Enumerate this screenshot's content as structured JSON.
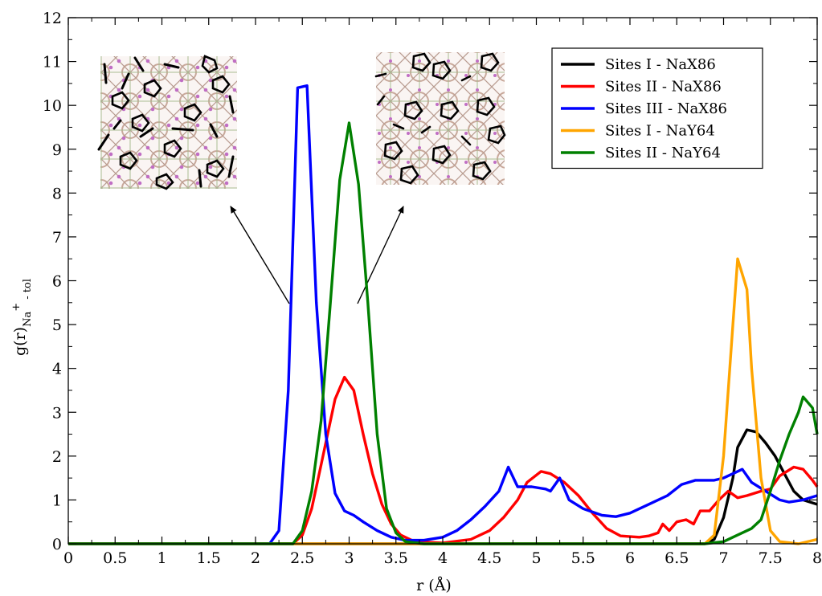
{
  "chart_data": {
    "type": "line",
    "title": "",
    "xlabel": "r (Å)",
    "ylabel": "g(r)",
    "ylabel_sub": "Na",
    "ylabel_sup": "+",
    "ylabel_sub2": " - tol",
    "xlim": [
      0,
      8
    ],
    "ylim": [
      0,
      12
    ],
    "xticks": [
      "0",
      "0.5",
      "1",
      "1.5",
      "2",
      "2.5",
      "3",
      "3.5",
      "4",
      "4.5",
      "5",
      "5.5",
      "6",
      "6.5",
      "7",
      "7.5",
      "8"
    ],
    "yticks": [
      "0",
      "1",
      "2",
      "3",
      "4",
      "5",
      "6",
      "7",
      "8",
      "9",
      "10",
      "11",
      "12"
    ],
    "grid": false,
    "legend_position": "top-right",
    "series": [
      {
        "name": "Sites I - NaX86",
        "color": "#000000",
        "points": [
          [
            0,
            0
          ],
          [
            6.8,
            0
          ],
          [
            6.9,
            0.1
          ],
          [
            7.0,
            0.6
          ],
          [
            7.1,
            1.5
          ],
          [
            7.15,
            2.2
          ],
          [
            7.25,
            2.6
          ],
          [
            7.35,
            2.55
          ],
          [
            7.45,
            2.3
          ],
          [
            7.55,
            2.0
          ],
          [
            7.65,
            1.6
          ],
          [
            7.75,
            1.2
          ],
          [
            7.85,
            1.0
          ],
          [
            8.0,
            0.9
          ]
        ]
      },
      {
        "name": "Sites II - NaX86",
        "color": "#ff0000",
        "points": [
          [
            0,
            0
          ],
          [
            2.4,
            0
          ],
          [
            2.5,
            0.2
          ],
          [
            2.6,
            0.8
          ],
          [
            2.7,
            1.8
          ],
          [
            2.8,
            2.8
          ],
          [
            2.85,
            3.3
          ],
          [
            2.95,
            3.8
          ],
          [
            3.05,
            3.5
          ],
          [
            3.15,
            2.5
          ],
          [
            3.25,
            1.6
          ],
          [
            3.35,
            0.9
          ],
          [
            3.45,
            0.45
          ],
          [
            3.55,
            0.2
          ],
          [
            3.7,
            0.05
          ],
          [
            4.0,
            0.02
          ],
          [
            4.3,
            0.1
          ],
          [
            4.5,
            0.3
          ],
          [
            4.65,
            0.6
          ],
          [
            4.8,
            1.0
          ],
          [
            4.9,
            1.4
          ],
          [
            5.05,
            1.65
          ],
          [
            5.15,
            1.6
          ],
          [
            5.3,
            1.4
          ],
          [
            5.45,
            1.1
          ],
          [
            5.6,
            0.7
          ],
          [
            5.75,
            0.35
          ],
          [
            5.9,
            0.18
          ],
          [
            6.1,
            0.15
          ],
          [
            6.2,
            0.18
          ],
          [
            6.3,
            0.25
          ],
          [
            6.35,
            0.45
          ],
          [
            6.42,
            0.3
          ],
          [
            6.5,
            0.5
          ],
          [
            6.6,
            0.55
          ],
          [
            6.68,
            0.45
          ],
          [
            6.75,
            0.75
          ],
          [
            6.85,
            0.75
          ],
          [
            6.95,
            1.0
          ],
          [
            7.05,
            1.2
          ],
          [
            7.15,
            1.05
          ],
          [
            7.25,
            1.1
          ],
          [
            7.4,
            1.2
          ],
          [
            7.5,
            1.25
          ],
          [
            7.6,
            1.55
          ],
          [
            7.75,
            1.75
          ],
          [
            7.85,
            1.7
          ],
          [
            7.95,
            1.45
          ],
          [
            8.0,
            1.3
          ]
        ]
      },
      {
        "name": "Sites III - NaX86",
        "color": "#0000ff",
        "points": [
          [
            0,
            0
          ],
          [
            2.15,
            0
          ],
          [
            2.25,
            0.3
          ],
          [
            2.35,
            3.5
          ],
          [
            2.45,
            10.4
          ],
          [
            2.55,
            10.45
          ],
          [
            2.65,
            5.5
          ],
          [
            2.75,
            2.5
          ],
          [
            2.85,
            1.15
          ],
          [
            2.95,
            0.75
          ],
          [
            3.05,
            0.65
          ],
          [
            3.15,
            0.5
          ],
          [
            3.3,
            0.3
          ],
          [
            3.45,
            0.15
          ],
          [
            3.6,
            0.08
          ],
          [
            3.8,
            0.08
          ],
          [
            4.0,
            0.15
          ],
          [
            4.15,
            0.3
          ],
          [
            4.3,
            0.55
          ],
          [
            4.45,
            0.85
          ],
          [
            4.6,
            1.2
          ],
          [
            4.7,
            1.75
          ],
          [
            4.8,
            1.3
          ],
          [
            4.95,
            1.3
          ],
          [
            5.1,
            1.25
          ],
          [
            5.15,
            1.2
          ],
          [
            5.25,
            1.5
          ],
          [
            5.35,
            1.0
          ],
          [
            5.5,
            0.8
          ],
          [
            5.7,
            0.65
          ],
          [
            5.85,
            0.62
          ],
          [
            6.0,
            0.7
          ],
          [
            6.2,
            0.9
          ],
          [
            6.4,
            1.1
          ],
          [
            6.55,
            1.35
          ],
          [
            6.7,
            1.45
          ],
          [
            6.9,
            1.45
          ],
          [
            7.0,
            1.5
          ],
          [
            7.1,
            1.6
          ],
          [
            7.2,
            1.7
          ],
          [
            7.3,
            1.4
          ],
          [
            7.45,
            1.2
          ],
          [
            7.6,
            1.0
          ],
          [
            7.7,
            0.95
          ],
          [
            7.85,
            1.0
          ],
          [
            8.0,
            1.1
          ]
        ]
      },
      {
        "name": "Sites I - NaY64",
        "color": "#ffa500",
        "points": [
          [
            0,
            0
          ],
          [
            6.8,
            0
          ],
          [
            6.9,
            0.2
          ],
          [
            7.0,
            2.0
          ],
          [
            7.05,
            3.5
          ],
          [
            7.1,
            5.0
          ],
          [
            7.15,
            6.5
          ],
          [
            7.25,
            5.8
          ],
          [
            7.3,
            4.0
          ],
          [
            7.4,
            1.5
          ],
          [
            7.5,
            0.3
          ],
          [
            7.6,
            0.05
          ],
          [
            7.8,
            0
          ],
          [
            8.0,
            0.1
          ]
        ]
      },
      {
        "name": "Sites II - NaY64",
        "color": "#008000",
        "points": [
          [
            0,
            0
          ],
          [
            2.4,
            0
          ],
          [
            2.5,
            0.3
          ],
          [
            2.6,
            1.2
          ],
          [
            2.7,
            2.8
          ],
          [
            2.8,
            5.5
          ],
          [
            2.9,
            8.3
          ],
          [
            3.0,
            9.6
          ],
          [
            3.1,
            8.2
          ],
          [
            3.2,
            5.5
          ],
          [
            3.3,
            2.5
          ],
          [
            3.4,
            0.8
          ],
          [
            3.5,
            0.25
          ],
          [
            3.6,
            0.05
          ],
          [
            3.8,
            0
          ],
          [
            6.8,
            0
          ],
          [
            7.0,
            0.05
          ],
          [
            7.15,
            0.2
          ],
          [
            7.3,
            0.35
          ],
          [
            7.4,
            0.55
          ],
          [
            7.5,
            1.2
          ],
          [
            7.6,
            1.9
          ],
          [
            7.7,
            2.5
          ],
          [
            7.8,
            3.0
          ],
          [
            7.85,
            3.35
          ],
          [
            7.95,
            3.1
          ],
          [
            8.0,
            2.5
          ]
        ]
      }
    ]
  }
}
